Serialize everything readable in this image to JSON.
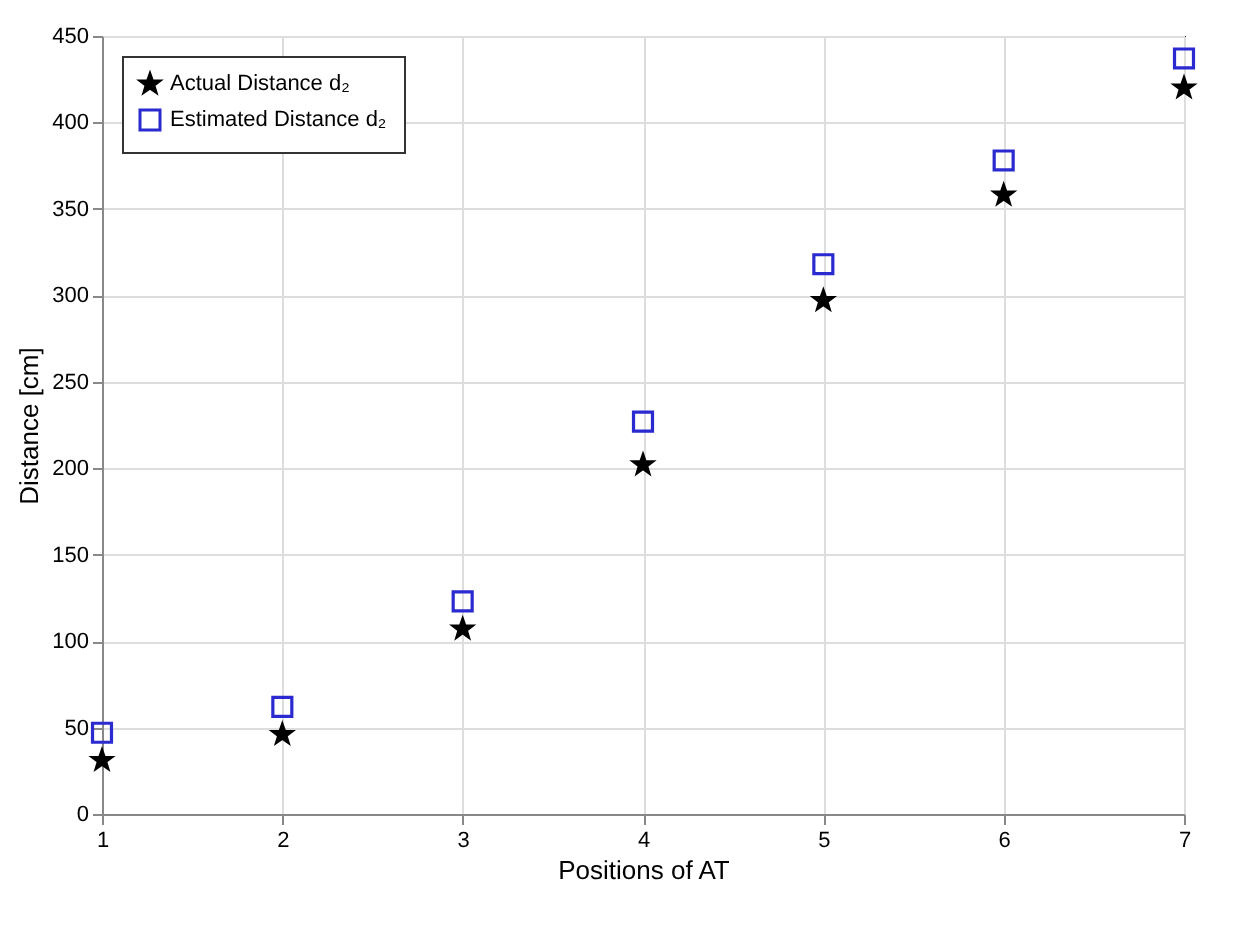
{
  "chart_data": {
    "type": "scatter",
    "xlabel": "Positions of AT",
    "ylabel": "Distance [cm]",
    "x": [
      1,
      2,
      3,
      4,
      5,
      6,
      7
    ],
    "series": [
      {
        "name": "Actual Distance d₂",
        "color": "#000000",
        "marker": "star",
        "values": [
          31,
          46,
          107,
          202,
          297,
          358,
          420
        ]
      },
      {
        "name": "Estimated Distance d₂",
        "color": "#2a2ad0",
        "marker": "square",
        "values": [
          47,
          62,
          123,
          227,
          318,
          378,
          437
        ]
      }
    ],
    "xlim": [
      1,
      7
    ],
    "xticks": [
      1,
      2,
      3,
      4,
      5,
      6,
      7
    ],
    "ylim": [
      0,
      450
    ],
    "yticks": [
      0,
      50,
      100,
      150,
      200,
      250,
      300,
      350,
      400,
      450
    ],
    "grid": true,
    "legend": "top left"
  }
}
